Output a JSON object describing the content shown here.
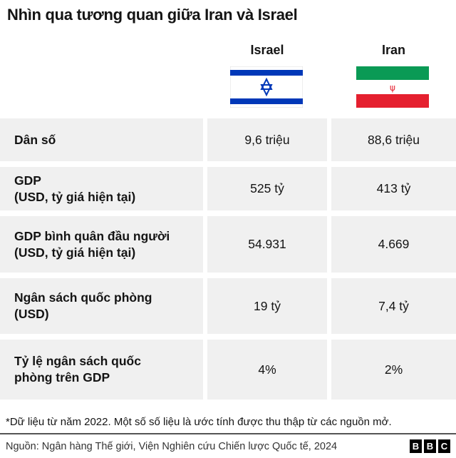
{
  "title": "Nhìn qua tương quan giữa Iran và Israel",
  "columns": [
    {
      "label": "Israel",
      "flag": "israel-flag",
      "flag_colors": {
        "blue": "#0038b8",
        "white": "#ffffff"
      }
    },
    {
      "label": "Iran",
      "flag": "iran-flag",
      "flag_colors": {
        "green": "#239f40",
        "white": "#ffffff",
        "red": "#da0000"
      }
    }
  ],
  "rows": [
    {
      "label1": "Dân số",
      "label2": "",
      "israel": "9,6 triệu",
      "iran": "88,6 triệu"
    },
    {
      "label1": "GDP",
      "label2": "(USD, tỷ giá hiện tại)",
      "israel": "525 tỷ",
      "iran": "413 tỷ"
    },
    {
      "label1": "GDP bình quân đầu người",
      "label2": "(USD, tỷ giá hiện tại)",
      "israel": "54.931",
      "iran": "4.669"
    },
    {
      "label1": "Ngân sách quốc phòng",
      "label2": "(USD)",
      "israel": "19 tỷ",
      "iran": "7,4 tỷ"
    },
    {
      "label1": "Tỷ lệ ngân sách quốc",
      "label2": "phòng trên GDP",
      "israel": "4%",
      "iran": "2%"
    }
  ],
  "footnote": "*Dữ liệu từ năm 2022. Một số số liệu là ước tính được thu thập từ các nguồn mở.",
  "source": "Nguồn: Ngân hàng Thế giới, Viện Nghiên cứu Chiến lược Quốc tế, 2024",
  "logo": [
    "B",
    "B",
    "C"
  ],
  "chart_data": {
    "type": "table",
    "title": "Nhìn qua tương quan giữa Iran và Israel",
    "headers": [
      "",
      "Israel",
      "Iran"
    ],
    "cells": [
      [
        "Dân số",
        "9,6 triệu",
        "88,6 triệu"
      ],
      [
        "GDP (USD, tỷ giá hiện tại)",
        "525 tỷ",
        "413 tỷ"
      ],
      [
        "GDP bình quân đầu người (USD, tỷ giá hiện tại)",
        "54.931",
        "4.669"
      ],
      [
        "Ngân sách quốc phòng (USD)",
        "19 tỷ",
        "7,4 tỷ"
      ],
      [
        "Tỷ lệ ngân sách quốc phòng trên GDP",
        "4%",
        "2%"
      ]
    ]
  }
}
